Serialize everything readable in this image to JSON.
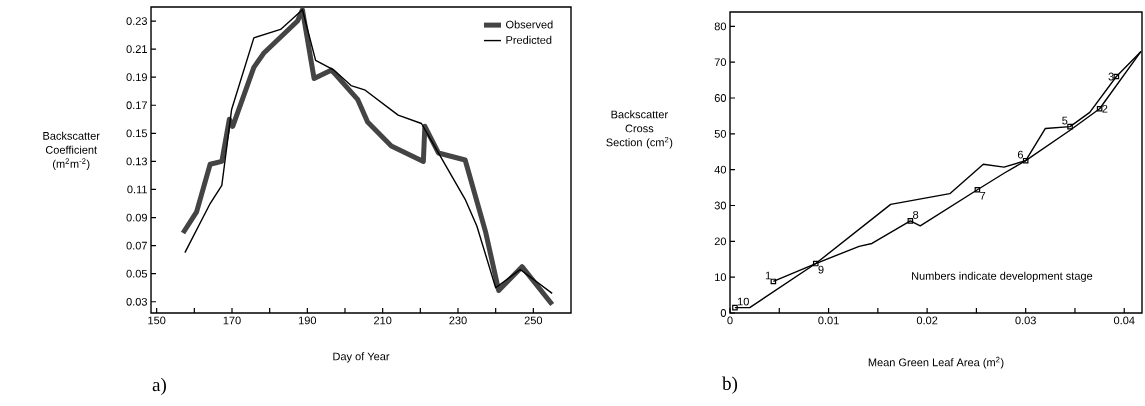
{
  "chart_data": [
    {
      "type": "line",
      "title": "a)",
      "xlabel": "Day of Year",
      "ylabel": "Backscatter Coefficient (m$^{2}$m$^{-2}$)",
      "xlim": [
        148.5,
        260
      ],
      "ylim": [
        0.022,
        0.24
      ],
      "xticks": [
        150,
        {
          "value": 160,
          "label": null
        },
        170,
        {
          "value": 180,
          "label": null
        },
        190,
        {
          "value": 200,
          "label": null
        },
        210,
        {
          "value": 220,
          "label": null
        },
        230,
        {
          "value": 240,
          "label": null
        },
        250
      ],
      "yticks": [
        0.03,
        0.05,
        0.07,
        0.09,
        0.11,
        0.13,
        0.15,
        0.17,
        0.19,
        0.21,
        0.23
      ],
      "legend": "top right",
      "series": [
        {
          "name": "Observed",
          "color": "#444444",
          "x": [
            157.0,
            160.6,
            164.2,
            167.3,
            169.3,
            170.2,
            175.8,
            178.4,
            187.4,
            188.7,
            191.8,
            196.3,
            197.1,
            203.4,
            206.0,
            212.3,
            220.8,
            221.2,
            224.8,
            231.9,
            237.3,
            240.8,
            247.0,
            255.0
          ],
          "values": [
            0.079,
            0.094,
            0.128,
            0.13,
            0.16,
            0.155,
            0.197,
            0.207,
            0.23,
            0.238,
            0.189,
            0.195,
            0.193,
            0.174,
            0.158,
            0.141,
            0.13,
            0.155,
            0.136,
            0.131,
            0.08,
            0.038,
            0.055,
            0.028
          ]
        },
        {
          "name": "Predicted",
          "color": "#000000",
          "x": [
            157.5,
            164.2,
            167.3,
            169.9,
            175.8,
            182.9,
            188.7,
            192.2,
            197.1,
            201.6,
            205.2,
            214.1,
            220.3,
            224.8,
            231.9,
            235.0,
            240.0,
            246.5,
            255.0
          ],
          "values": [
            0.065,
            0.1,
            0.113,
            0.167,
            0.218,
            0.224,
            0.238,
            0.202,
            0.195,
            0.184,
            0.181,
            0.163,
            0.157,
            0.136,
            0.103,
            0.084,
            0.04,
            0.053,
            0.036
          ]
        }
      ]
    },
    {
      "type": "line",
      "title": "b)",
      "xlabel": "Mean Green Leaf Area (m$^{2}$)",
      "ylabel": "Backscatter Cross Section (cm$^{2}$)",
      "xlim": [
        0,
        0.0418
      ],
      "ylim": [
        0,
        84
      ],
      "xticks": [
        0,
        {
          "value": 0.005,
          "label": null
        },
        0.01,
        {
          "value": 0.015,
          "label": null
        },
        0.02,
        {
          "value": 0.025,
          "label": null
        },
        0.03,
        {
          "value": 0.035,
          "label": null
        },
        0.04
      ],
      "yticks": [
        0,
        10,
        20,
        30,
        40,
        50,
        60,
        70,
        80
      ],
      "series": [
        {
          "type": "line",
          "color": "#000000",
          "x": [
            0.0044,
            0.0087,
            0.0131,
            0.0144,
            0.0183,
            0.0193,
            0.0251,
            0.0278,
            0.03,
            0.0345,
            0.0375,
            0.0417
          ],
          "values": [
            8.8,
            13.8,
            18.6,
            19.4,
            25.7,
            24.3,
            34.4,
            39,
            42.5,
            51,
            57,
            73
          ]
        },
        {
          "type": "line",
          "color": "#000000",
          "x": [
            0.0005,
            0.002,
            0.0087,
            0.0163,
            0.0223,
            0.0257,
            0.0278,
            0.03,
            0.032,
            0.0345,
            0.0365,
            0.0392,
            0.0417
          ],
          "values": [
            1.5,
            1.5,
            13.8,
            30.3,
            33.3,
            41.5,
            40.7,
            42.5,
            51.5,
            52,
            56,
            66,
            73
          ]
        },
        {
          "type": "scatter",
          "color": "#000000",
          "marker": "square",
          "x": [
            0.0005,
            0.0044,
            0.0087,
            0.0183,
            0.0251,
            0.03,
            0.0345,
            0.0375,
            0.0392
          ],
          "values": [
            1.5,
            8.8,
            13.8,
            25.7,
            34.4,
            42.5,
            52,
            57,
            66
          ]
        }
      ],
      "annotations": [
        "Numbers indicate development stage",
        {
          "text": "10",
          "x": 0.0005,
          "y": 1.5
        },
        {
          "text": "1",
          "x": 0.0044,
          "y": 8.8
        },
        {
          "text": "9",
          "x": 0.0087,
          "y": 13.8
        },
        {
          "text": "8",
          "x": 0.0183,
          "y": 25.7
        },
        {
          "text": "7",
          "x": 0.0251,
          "y": 34.4
        },
        {
          "text": "6",
          "x": 0.03,
          "y": 42.5
        },
        {
          "text": "5",
          "x": 0.0345,
          "y": 52
        },
        {
          "text": "2",
          "x": 0.0375,
          "y": 57
        },
        {
          "text": "3",
          "x": 0.0392,
          "y": 66
        }
      ]
    }
  ]
}
